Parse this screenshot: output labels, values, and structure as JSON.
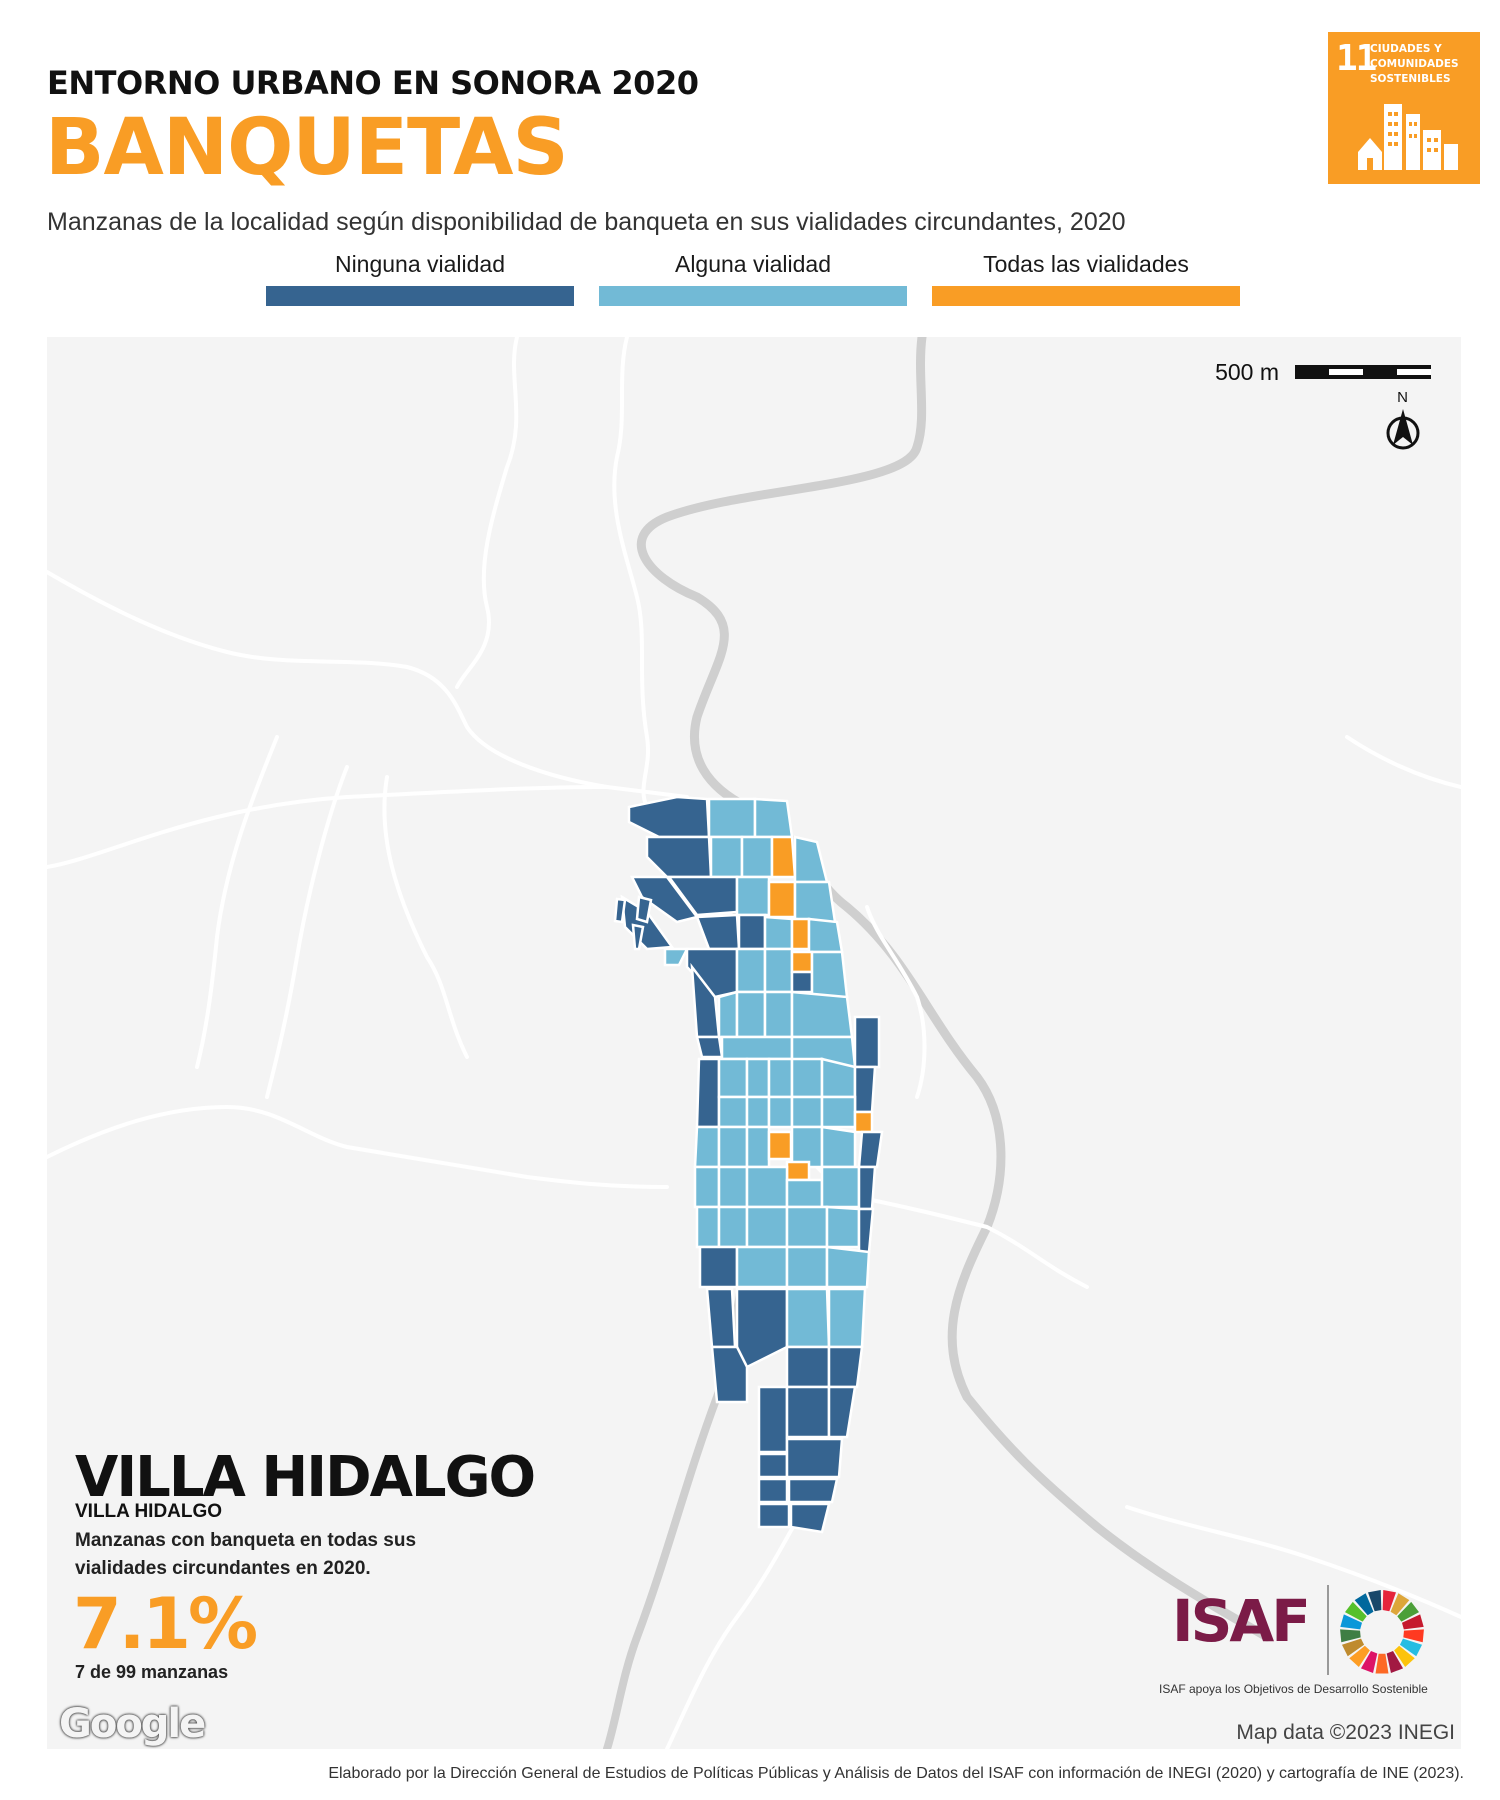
{
  "header": {
    "kicker": "ENTORNO URBANO EN SONORA 2020",
    "title": "BANQUETAS",
    "subtitle": "Manzanas de la localidad según disponibilidad de banqueta en sus vialidades circundantes, 2020"
  },
  "legend": [
    {
      "label": "Ninguna vialidad",
      "color": "#366490"
    },
    {
      "label": "Alguna vialidad",
      "color": "#72bad6"
    },
    {
      "label": "Todas las vialidades",
      "color": "#f99d25"
    }
  ],
  "sdg_badge": {
    "number": "11",
    "text": "CIUDADES Y COMUNIDADES SOSTENIBLES",
    "color": "#f99d25"
  },
  "map": {
    "scale_label": "500 m",
    "north_label": "N",
    "attribution": "Map data ©2023 INEGI",
    "provider_logo": "Google",
    "background": "#f4f4f4",
    "road_color": "#ffffff",
    "river_color": "#cfcfcf"
  },
  "locality": {
    "name": "VILLA HIDALGO",
    "municipality": "VILLA HIDALGO",
    "description": "Manzanas con banqueta en todas sus vialidades circundantes en 2020.",
    "percentage": "7.1%",
    "count": "7 de 99 manzanas"
  },
  "logos": {
    "isaf": "ISAF",
    "isaf_caption": "ISAF apoya los Objetivos de Desarrollo Sostenible"
  },
  "footer": "Elaborado por la Dirección General de Estudios de Políticas Públicas y Análisis de Datos del ISAF con información de INEGI (2020) y cartografía de INE (2023)."
}
